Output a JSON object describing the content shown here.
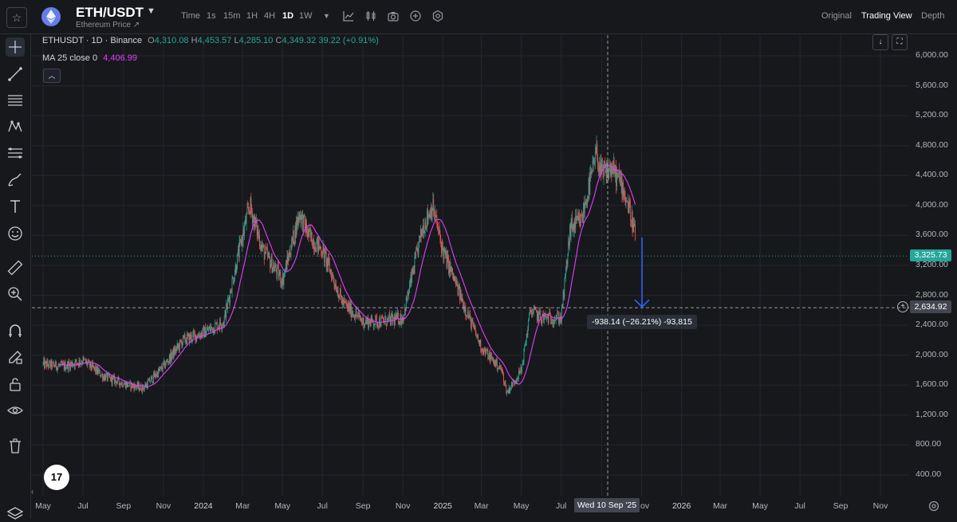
{
  "header": {
    "pair": "ETH/USDT",
    "subtitle": "Ethereum Price ↗",
    "timeframes": [
      {
        "label": "Time",
        "active": false
      },
      {
        "label": "1s",
        "active": false
      },
      {
        "label": "15m",
        "active": false
      },
      {
        "label": "1H",
        "active": false
      },
      {
        "label": "4H",
        "active": false
      },
      {
        "label": "1D",
        "active": true
      },
      {
        "label": "1W",
        "active": false
      }
    ],
    "views": [
      {
        "label": "Original",
        "active": false
      },
      {
        "label": "Trading View",
        "active": true
      },
      {
        "label": "Depth",
        "active": false
      }
    ]
  },
  "legend": {
    "symbol": "ETHUSDT · 1D · Binance",
    "open_label": "O",
    "open": "4,310.08",
    "high_label": "H",
    "high": "4,453.57",
    "low_label": "L",
    "low": "4,285.10",
    "close_label": "C",
    "close": "4,349.32",
    "change": "39.22 (+0.91%)",
    "ma_label": "MA 25 close 0",
    "ma_value": "4,406.99"
  },
  "tv_logo": "17",
  "price_tag": "3,325.73",
  "crosshair_price": "2,634.92",
  "crosshair_date": "Wed 10 Sep '25",
  "measure_label": "-938.14 (−26.21%) -93,815",
  "colors": {
    "up": "#26a69a",
    "down": "#ef5350",
    "ma": "#e040fb",
    "measure": "#2962ff",
    "background": "#17181b"
  },
  "chart_data": {
    "type": "candlestick",
    "title": "",
    "y_ticks": [
      "6,000.00",
      "5,600.00",
      "5,200.00",
      "4,800.00",
      "4,400.00",
      "4,000.00",
      "3,600.00",
      "3,200.00",
      "2,800.00",
      "2,400.00",
      "2,000.00",
      "1,600.00",
      "1,200.00",
      "800.00",
      "400.00"
    ],
    "ylim": [
      200,
      6200
    ],
    "x_ticks": [
      "May",
      "Jul",
      "Sep",
      "Nov",
      "2024",
      "Mar",
      "May",
      "Jul",
      "Sep",
      "Nov",
      "2025",
      "Mar",
      "May",
      "Jul",
      "Wed 10 Sep '25",
      "ov",
      "2026",
      "Mar",
      "May",
      "Jul",
      "Sep",
      "Nov"
    ],
    "close_path": [
      [
        "2023-05-01",
        1880
      ],
      [
        "2023-06-01",
        1850
      ],
      [
        "2023-07-01",
        1930
      ],
      [
        "2023-08-01",
        1720
      ],
      [
        "2023-09-01",
        1620
      ],
      [
        "2023-10-01",
        1560
      ],
      [
        "2023-11-01",
        1850
      ],
      [
        "2023-12-01",
        2200
      ],
      [
        "2024-01-01",
        2300
      ],
      [
        "2024-02-01",
        2450
      ],
      [
        "2024-03-01",
        3600
      ],
      [
        "2024-03-12",
        4000
      ],
      [
        "2024-04-01",
        3400
      ],
      [
        "2024-05-01",
        3000
      ],
      [
        "2024-05-27",
        3900
      ],
      [
        "2024-06-10",
        3600
      ],
      [
        "2024-07-01",
        3400
      ],
      [
        "2024-08-01",
        2700
      ],
      [
        "2024-09-01",
        2450
      ],
      [
        "2024-10-01",
        2450
      ],
      [
        "2024-11-01",
        2500
      ],
      [
        "2024-12-01",
        3700
      ],
      [
        "2024-12-16",
        4000
      ],
      [
        "2025-01-01",
        3400
      ],
      [
        "2025-02-01",
        2700
      ],
      [
        "2025-03-01",
        2100
      ],
      [
        "2025-04-01",
        1800
      ],
      [
        "2025-04-09",
        1500
      ],
      [
        "2025-05-01",
        1800
      ],
      [
        "2025-05-15",
        2600
      ],
      [
        "2025-06-01",
        2500
      ],
      [
        "2025-07-01",
        2500
      ],
      [
        "2025-07-15",
        3700
      ],
      [
        "2025-08-01",
        3800
      ],
      [
        "2025-08-24",
        4700
      ],
      [
        "2025-09-01",
        4400
      ],
      [
        "2025-09-15",
        4500
      ],
      [
        "2025-10-01",
        4300
      ],
      [
        "2025-10-15",
        3900
      ],
      [
        "2025-10-22",
        3600
      ]
    ],
    "measure": {
      "from_price": 3573,
      "to_price": 2635,
      "change": -938.14,
      "change_pct": -26.21,
      "bars": "-93,815"
    },
    "horizontal_lines": {
      "current_price": 3325.73,
      "crosshair": 2634.92
    },
    "grid": true
  }
}
